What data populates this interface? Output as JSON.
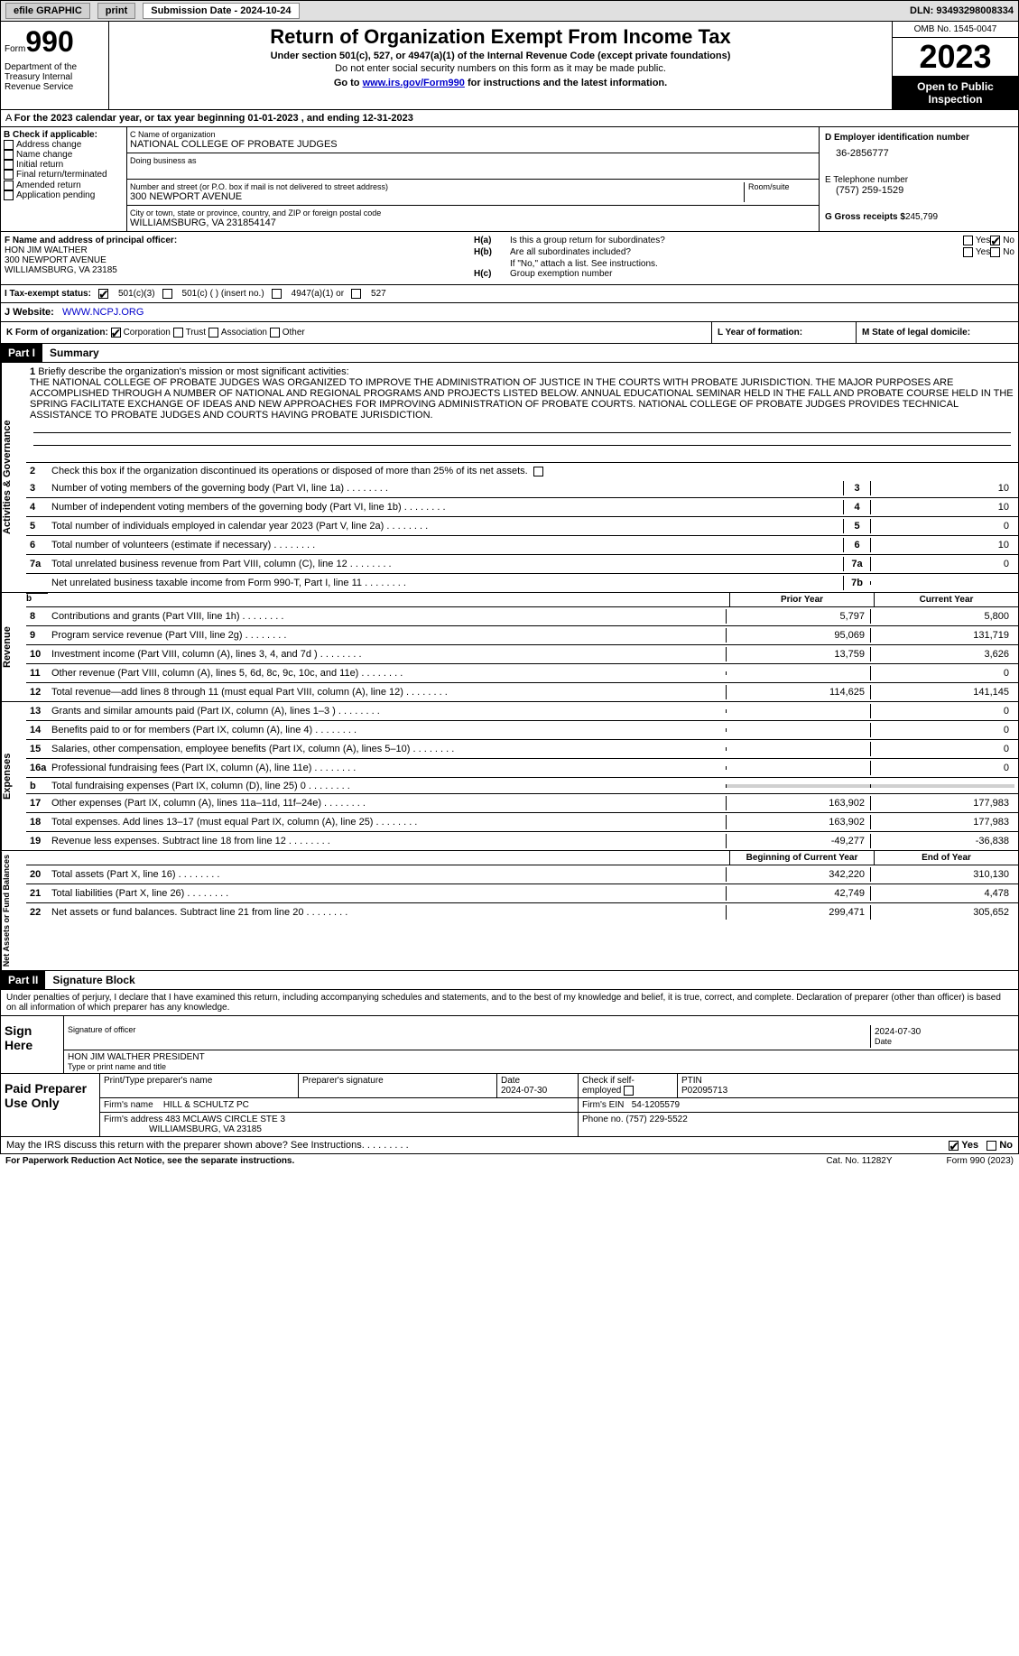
{
  "topbar": {
    "efile": "efile GRAPHIC",
    "print": "print",
    "submission": "Submission Date - 2024-10-24",
    "dln": "DLN: 93493298008334"
  },
  "header": {
    "form_prefix": "Form",
    "form_num": "990",
    "title": "Return of Organization Exempt From Income Tax",
    "sub": "Under section 501(c), 527, or 4947(a)(1) of the Internal Revenue Code (except private foundations)",
    "note": "Do not enter social security numbers on this form as it may be made public.",
    "goto_pre": "Go to ",
    "goto_link": "www.irs.gov/Form990",
    "goto_post": " for instructions and the latest information.",
    "omb": "OMB No. 1545-0047",
    "year": "2023",
    "open_pub": "Open to Public Inspection",
    "dept": "Department of the Treasury Internal Revenue Service"
  },
  "period": "For the 2023 calendar year, or tax year beginning 01-01-2023    , and ending 12-31-2023",
  "block_b": {
    "title": "B Check if applicable:",
    "items": [
      "Address change",
      "Name change",
      "Initial return",
      "Final return/terminated",
      "Amended return",
      "Application pending"
    ]
  },
  "block_c": {
    "name_lbl": "C Name of organization",
    "name": "NATIONAL COLLEGE OF PROBATE JUDGES",
    "dba_lbl": "Doing business as",
    "addr_lbl": "Number and street (or P.O. box if mail is not delivered to street address)",
    "room_lbl": "Room/suite",
    "addr": "300 NEWPORT AVENUE",
    "city_lbl": "City or town, state or province, country, and ZIP or foreign postal code",
    "city": "WILLIAMSBURG, VA   231854147"
  },
  "block_d": {
    "ein_lbl": "D Employer identification number",
    "ein": "36-2856777",
    "phone_lbl": "E Telephone number",
    "phone": "(757) 259-1529",
    "gross_lbl": "G Gross receipts $",
    "gross": "245,799"
  },
  "block_f": {
    "lbl": "F  Name and address of principal officer:",
    "name": "HON JIM WALTHER",
    "addr1": "300 NEWPORT AVENUE",
    "addr2": "WILLIAMSBURG, VA   23185"
  },
  "block_h": {
    "ha": "Is this a group return for subordinates?",
    "hb": "Are all subordinates included?",
    "hb_note": "If \"No,\" attach a list. See instructions.",
    "hc": "Group exemption number",
    "yes": "Yes",
    "no": "No"
  },
  "row_i": {
    "lbl": "I   Tax-exempt status:",
    "opt1": "501(c)(3)",
    "opt2": "501(c) (   ) (insert no.)",
    "opt3": "4947(a)(1) or",
    "opt4": "527"
  },
  "row_j": {
    "lbl": "J   Website:",
    "val": "WWW.NCPJ.ORG"
  },
  "row_k": {
    "lbl": "K Form of organization:",
    "opts": [
      "Corporation",
      "Trust",
      "Association",
      "Other"
    ]
  },
  "row_l": "L Year of formation:",
  "row_m": "M State of legal domicile:",
  "part1": {
    "num": "Part I",
    "title": "Summary"
  },
  "mission": {
    "num": "1",
    "lbl": "Briefly describe the organization's mission or most significant activities:",
    "text": "THE NATIONAL COLLEGE OF PROBATE JUDGES WAS ORGANIZED TO IMPROVE THE ADMINISTRATION OF JUSTICE IN THE COURTS WITH PROBATE JURISDICTION. THE MAJOR PURPOSES ARE ACCOMPLISHED THROUGH A NUMBER OF NATIONAL AND REGIONAL PROGRAMS AND PROJECTS LISTED BELOW. ANNUAL EDUCATIONAL SEMINAR HELD IN THE FALL AND PROBATE COURSE HELD IN THE SPRING FACILITATE EXCHANGE OF IDEAS AND NEW APPROACHES FOR IMPROVING ADMINISTRATION OF PROBATE COURTS. NATIONAL COLLEGE OF PROBATE JUDGES PROVIDES TECHNICAL ASSISTANCE TO PROBATE JUDGES AND COURTS HAVING PROBATE JURISDICTION."
  },
  "activities": {
    "label": "Activities & Governance",
    "line2": "Check this box      if the organization discontinued its operations or disposed of more than 25% of its net assets.",
    "lines": [
      {
        "n": "3",
        "t": "Number of voting members of the governing body (Part VI, line 1a)",
        "box": "3",
        "v": "10"
      },
      {
        "n": "4",
        "t": "Number of independent voting members of the governing body (Part VI, line 1b)",
        "box": "4",
        "v": "10"
      },
      {
        "n": "5",
        "t": "Total number of individuals employed in calendar year 2023 (Part V, line 2a)",
        "box": "5",
        "v": "0"
      },
      {
        "n": "6",
        "t": "Total number of volunteers (estimate if necessary)",
        "box": "6",
        "v": "10"
      },
      {
        "n": "7a",
        "t": "Total unrelated business revenue from Part VIII, column (C), line 12",
        "box": "7a",
        "v": "0"
      },
      {
        "n": "",
        "t": "Net unrelated business taxable income from Form 990-T, Part I, line 11",
        "box": "7b",
        "v": ""
      }
    ]
  },
  "col_hdrs": {
    "prior": "Prior Year",
    "current": "Current Year"
  },
  "revenue": {
    "label": "Revenue",
    "lines": [
      {
        "n": "8",
        "t": "Contributions and grants (Part VIII, line 1h)",
        "p": "5,797",
        "c": "5,800"
      },
      {
        "n": "9",
        "t": "Program service revenue (Part VIII, line 2g)",
        "p": "95,069",
        "c": "131,719"
      },
      {
        "n": "10",
        "t": "Investment income (Part VIII, column (A), lines 3, 4, and 7d )",
        "p": "13,759",
        "c": "3,626"
      },
      {
        "n": "11",
        "t": "Other revenue (Part VIII, column (A), lines 5, 6d, 8c, 9c, 10c, and 11e)",
        "p": "",
        "c": "0"
      },
      {
        "n": "12",
        "t": "Total revenue—add lines 8 through 11 (must equal Part VIII, column (A), line 12)",
        "p": "114,625",
        "c": "141,145"
      }
    ]
  },
  "expenses": {
    "label": "Expenses",
    "lines": [
      {
        "n": "13",
        "t": "Grants and similar amounts paid (Part IX, column (A), lines 1–3 )",
        "p": "",
        "c": "0"
      },
      {
        "n": "14",
        "t": "Benefits paid to or for members (Part IX, column (A), line 4)",
        "p": "",
        "c": "0"
      },
      {
        "n": "15",
        "t": "Salaries, other compensation, employee benefits (Part IX, column (A), lines 5–10)",
        "p": "",
        "c": "0"
      },
      {
        "n": "16a",
        "t": "Professional fundraising fees (Part IX, column (A), line 11e)",
        "p": "",
        "c": "0"
      },
      {
        "n": "b",
        "t": "Total fundraising expenses (Part IX, column (D), line 25) 0",
        "p": "shade",
        "c": "shade"
      },
      {
        "n": "17",
        "t": "Other expenses (Part IX, column (A), lines 11a–11d, 11f–24e)",
        "p": "163,902",
        "c": "177,983"
      },
      {
        "n": "18",
        "t": "Total expenses. Add lines 13–17 (must equal Part IX, column (A), line 25)",
        "p": "163,902",
        "c": "177,983"
      },
      {
        "n": "19",
        "t": "Revenue less expenses. Subtract line 18 from line 12",
        "p": "-49,277",
        "c": "-36,838"
      }
    ]
  },
  "col_hdrs2": {
    "beg": "Beginning of Current Year",
    "end": "End of Year"
  },
  "netassets": {
    "label": "Net Assets or Fund Balances",
    "lines": [
      {
        "n": "20",
        "t": "Total assets (Part X, line 16)",
        "p": "342,220",
        "c": "310,130"
      },
      {
        "n": "21",
        "t": "Total liabilities (Part X, line 26)",
        "p": "42,749",
        "c": "4,478"
      },
      {
        "n": "22",
        "t": "Net assets or fund balances. Subtract line 21 from line 20",
        "p": "299,471",
        "c": "305,652"
      }
    ]
  },
  "part2": {
    "num": "Part II",
    "title": "Signature Block",
    "perjury": "Under penalties of perjury, I declare that I have examined this return, including accompanying schedules and statements, and to the best of my knowledge and belief, it is true, correct, and complete. Declaration of preparer (other than officer) is based on all information of which preparer has any knowledge."
  },
  "sign": {
    "here": "Sign Here",
    "sig_lbl": "Signature of officer",
    "date_lbl": "Date",
    "date": "2024-07-30",
    "name": "HON JIM WALTHER  PRESIDENT",
    "name_lbl": "Type or print name and title"
  },
  "paid": {
    "lbl": "Paid Preparer Use Only",
    "print_lbl": "Print/Type preparer's name",
    "sig_lbl": "Preparer's signature",
    "date_lbl": "Date",
    "date": "2024-07-30",
    "check_lbl": "Check       if self-employed",
    "ptin_lbl": "PTIN",
    "ptin": "P02095713",
    "firm_name_lbl": "Firm's name",
    "firm_name": "HILL & SCHULTZ PC",
    "firm_ein_lbl": "Firm's EIN",
    "firm_ein": "54-1205579",
    "firm_addr_lbl": "Firm's address",
    "firm_addr": "483 MCLAWS CIRCLE STE 3",
    "firm_city": "WILLIAMSBURG, VA   23185",
    "phone_lbl": "Phone no.",
    "phone": "(757) 229-5522"
  },
  "discuss": "May the IRS discuss this return with the preparer shown above? See Instructions.",
  "footer": {
    "left": "For Paperwork Reduction Act Notice, see the separate instructions.",
    "mid": "Cat. No. 11282Y",
    "right": "Form 990 (2023)"
  }
}
